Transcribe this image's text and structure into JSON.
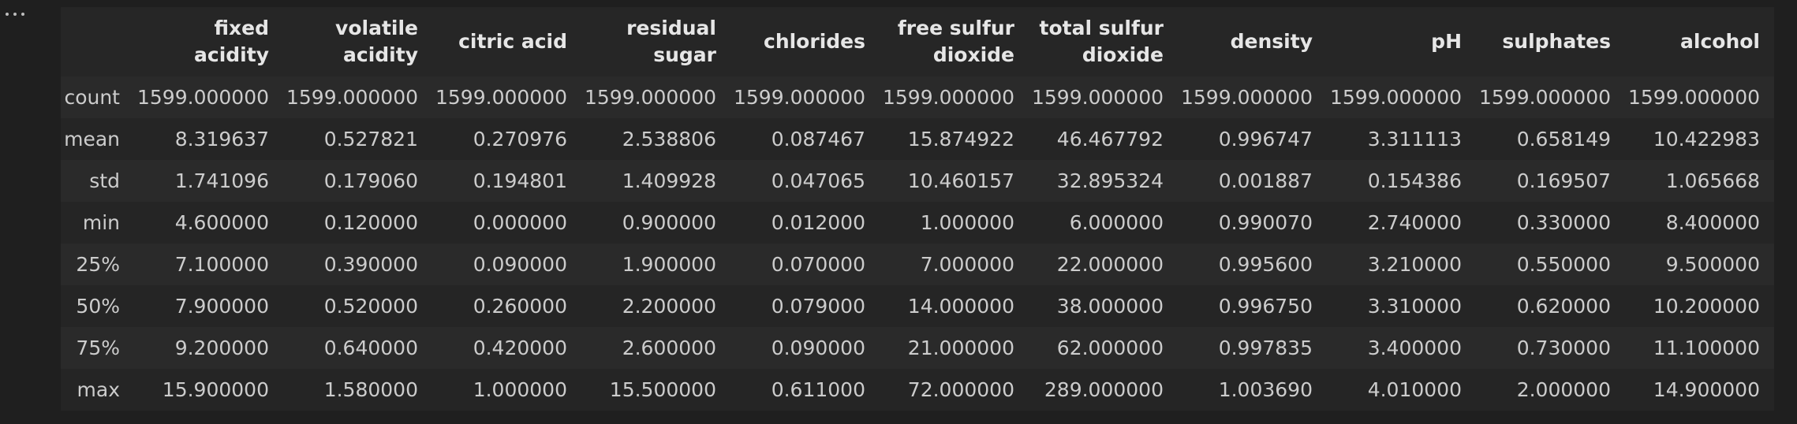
{
  "table": {
    "columns": [
      "fixed\nacidity",
      "volatile\nacidity",
      "citric acid",
      "residual\nsugar",
      "chlorides",
      "free sulfur\ndioxide",
      "total sulfur\ndioxide",
      "density",
      "pH",
      "sulphates",
      "alcohol"
    ],
    "rows": [
      {
        "label": "count",
        "values": [
          "1599.000000",
          "1599.000000",
          "1599.000000",
          "1599.000000",
          "1599.000000",
          "1599.000000",
          "1599.000000",
          "1599.000000",
          "1599.000000",
          "1599.000000",
          "1599.000000"
        ]
      },
      {
        "label": "mean",
        "values": [
          "8.319637",
          "0.527821",
          "0.270976",
          "2.538806",
          "0.087467",
          "15.874922",
          "46.467792",
          "0.996747",
          "3.311113",
          "0.658149",
          "10.422983"
        ]
      },
      {
        "label": "std",
        "values": [
          "1.741096",
          "0.179060",
          "0.194801",
          "1.409928",
          "0.047065",
          "10.460157",
          "32.895324",
          "0.001887",
          "0.154386",
          "0.169507",
          "1.065668"
        ]
      },
      {
        "label": "min",
        "values": [
          "4.600000",
          "0.120000",
          "0.000000",
          "0.900000",
          "0.012000",
          "1.000000",
          "6.000000",
          "0.990070",
          "2.740000",
          "0.330000",
          "8.400000"
        ]
      },
      {
        "label": "25%",
        "values": [
          "7.100000",
          "0.390000",
          "0.090000",
          "1.900000",
          "0.070000",
          "7.000000",
          "22.000000",
          "0.995600",
          "3.210000",
          "0.550000",
          "9.500000"
        ]
      },
      {
        "label": "50%",
        "values": [
          "7.900000",
          "0.520000",
          "0.260000",
          "2.200000",
          "0.079000",
          "14.000000",
          "38.000000",
          "0.996750",
          "3.310000",
          "0.620000",
          "10.200000"
        ]
      },
      {
        "label": "75%",
        "values": [
          "9.200000",
          "0.640000",
          "0.420000",
          "2.600000",
          "0.090000",
          "21.000000",
          "62.000000",
          "0.997835",
          "3.400000",
          "0.730000",
          "11.100000"
        ]
      },
      {
        "label": "max",
        "values": [
          "15.900000",
          "1.580000",
          "1.000000",
          "15.500000",
          "0.611000",
          "72.000000",
          "289.000000",
          "1.003690",
          "4.010000",
          "2.000000",
          "14.900000"
        ]
      }
    ]
  }
}
